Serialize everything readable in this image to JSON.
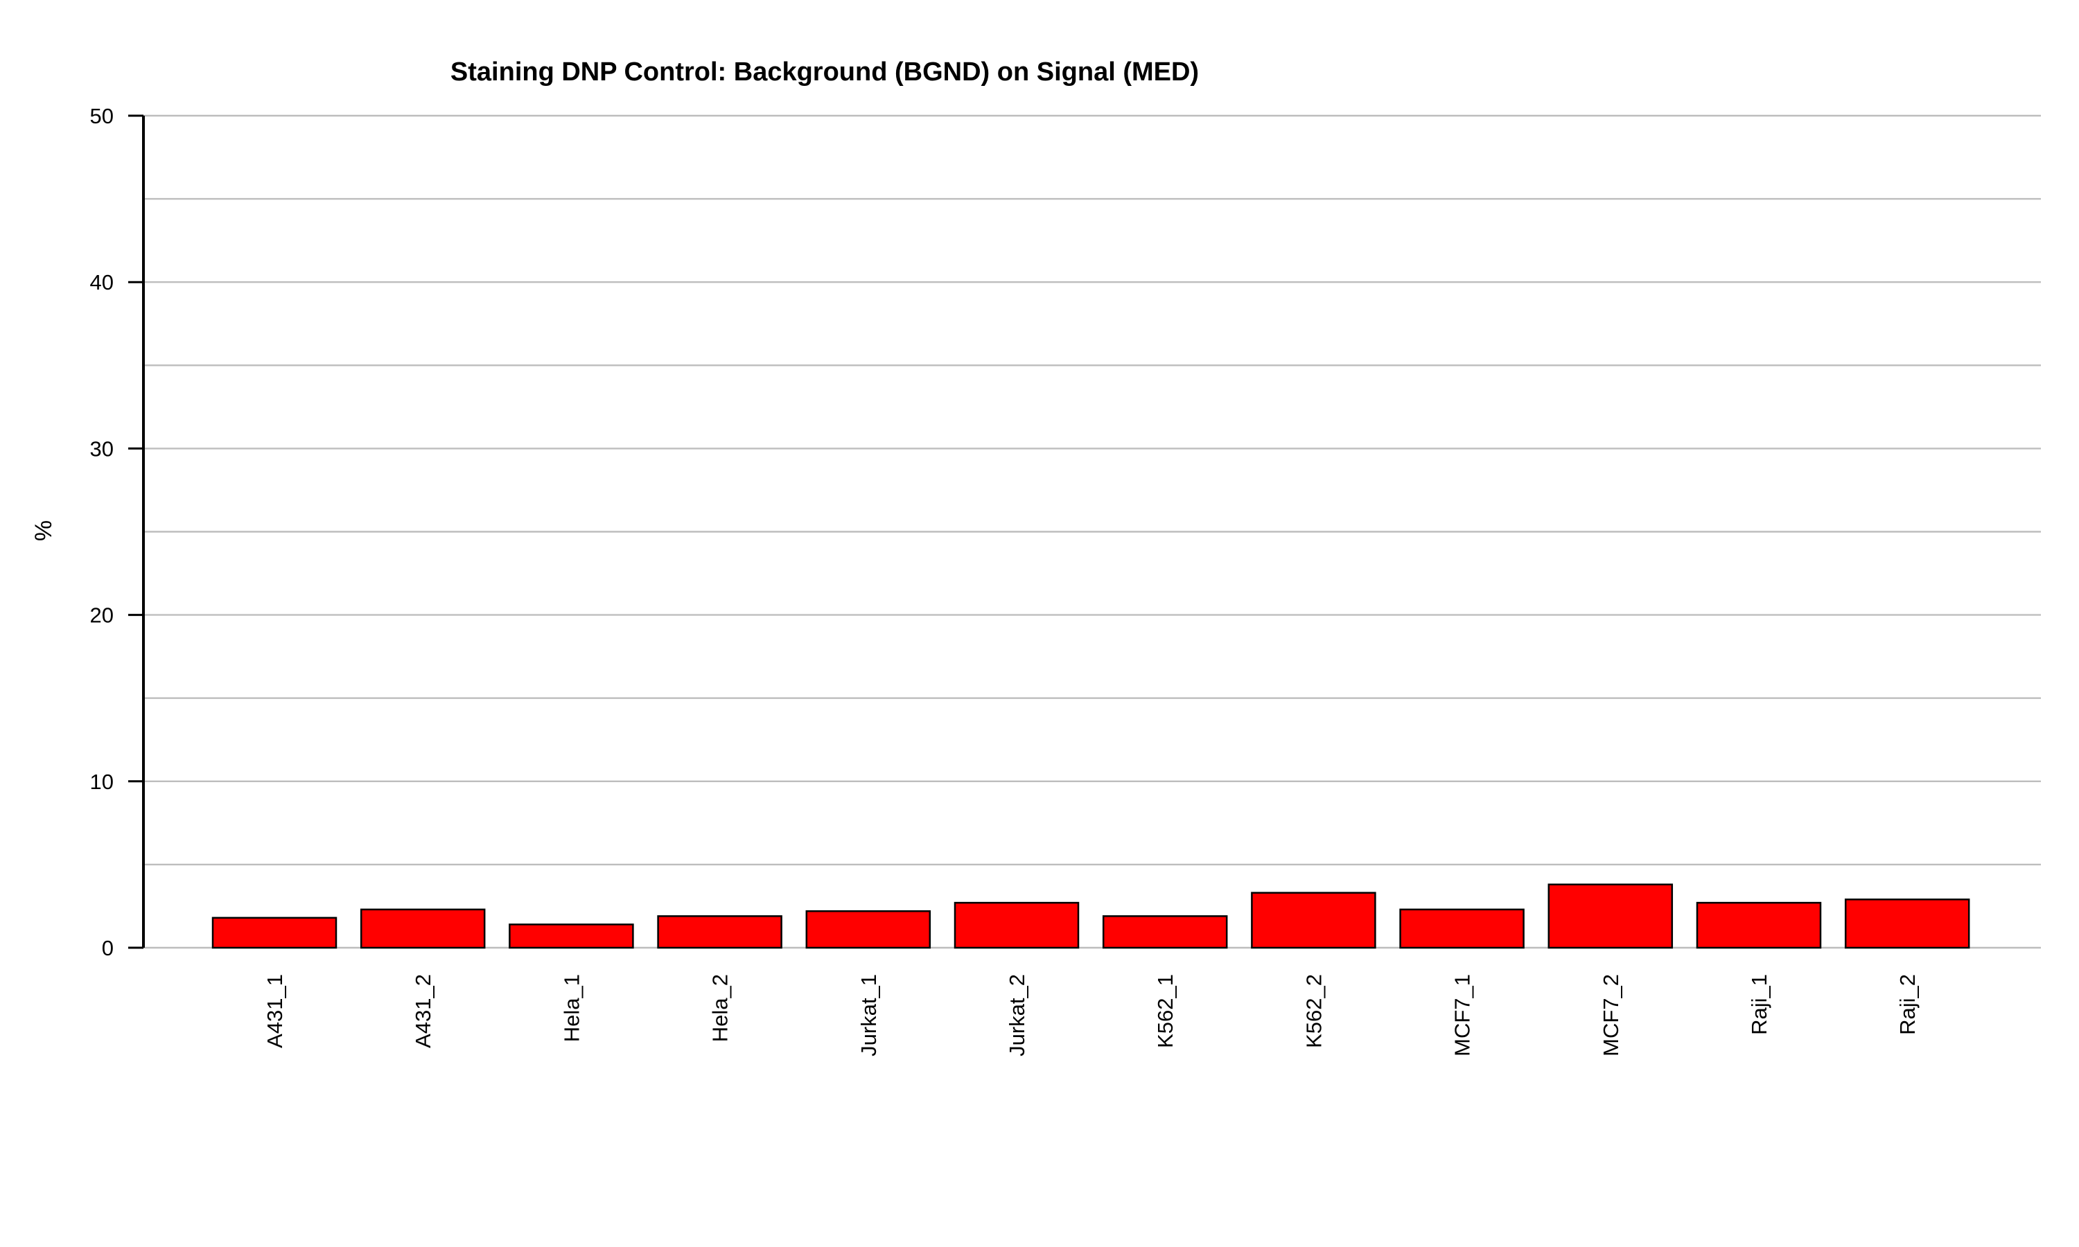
{
  "chart_data": {
    "type": "bar",
    "title": "Staining DNP Control: Background (BGND) on Signal (MED)",
    "xlabel": "",
    "ylabel": "%",
    "ylim": [
      0,
      50
    ],
    "yticks": [
      0,
      10,
      20,
      30,
      40,
      50
    ],
    "minor_gridlines": [
      5,
      15,
      25,
      35,
      45
    ],
    "grid": true,
    "legend": "none",
    "bar_color": "#ff0000",
    "bar_edge_color": "#000000",
    "categories": [
      "A431_1",
      "A431_2",
      "Hela_1",
      "Hela_2",
      "Jurkat_1",
      "Jurkat_2",
      "K562_1",
      "K562_2",
      "MCF7_1",
      "MCF7_2",
      "Raji_1",
      "Raji_2"
    ],
    "values": [
      1.8,
      2.3,
      1.4,
      1.9,
      2.2,
      2.7,
      1.9,
      3.3,
      2.3,
      3.8,
      2.7,
      2.9
    ]
  }
}
